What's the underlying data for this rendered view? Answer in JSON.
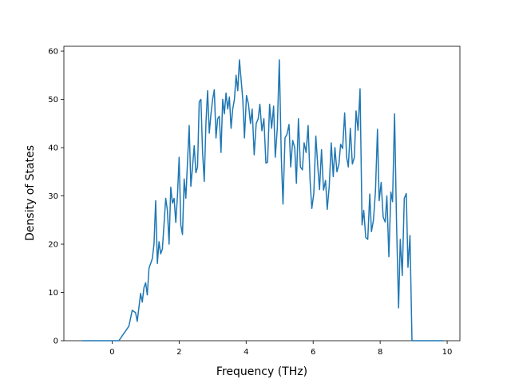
{
  "chart_data": {
    "type": "line",
    "x_label": "Frequency (THz)",
    "y_label": "Density of States",
    "xlim": [
      -1.44,
      10.38
    ],
    "ylim": [
      0,
      61
    ],
    "xticks": [
      0,
      2,
      4,
      6,
      8,
      10
    ],
    "yticks": [
      0,
      10,
      20,
      30,
      40,
      50,
      60
    ],
    "x": [
      -0.9,
      0.2,
      0.3,
      0.4,
      0.5,
      0.6,
      0.7,
      0.75,
      0.85,
      0.9,
      0.95,
      1.0,
      1.05,
      1.1,
      1.2,
      1.25,
      1.3,
      1.35,
      1.4,
      1.45,
      1.5,
      1.6,
      1.65,
      1.7,
      1.75,
      1.8,
      1.85,
      1.9,
      1.95,
      2.0,
      2.05,
      2.1,
      2.15,
      2.2,
      2.25,
      2.3,
      2.35,
      2.4,
      2.45,
      2.5,
      2.55,
      2.6,
      2.65,
      2.7,
      2.75,
      2.8,
      2.85,
      2.9,
      2.95,
      3.0,
      3.05,
      3.1,
      3.15,
      3.2,
      3.25,
      3.3,
      3.35,
      3.4,
      3.45,
      3.5,
      3.55,
      3.6,
      3.65,
      3.7,
      3.75,
      3.8,
      3.9,
      3.95,
      4.01,
      4.07,
      4.13,
      4.18,
      4.24,
      4.3,
      4.36,
      4.41,
      4.47,
      4.53,
      4.59,
      4.64,
      4.7,
      4.76,
      4.82,
      4.87,
      4.93,
      4.99,
      5.05,
      5.1,
      5.16,
      5.22,
      5.28,
      5.33,
      5.39,
      5.45,
      5.5,
      5.56,
      5.62,
      5.68,
      5.73,
      5.79,
      5.85,
      5.91,
      5.96,
      6.02,
      6.08,
      6.14,
      6.19,
      6.25,
      6.31,
      6.37,
      6.42,
      6.48,
      6.54,
      6.6,
      6.65,
      6.71,
      6.77,
      6.82,
      6.88,
      6.94,
      7.0,
      7.05,
      7.11,
      7.17,
      7.23,
      7.28,
      7.34,
      7.4,
      7.46,
      7.51,
      7.57,
      7.63,
      7.69,
      7.74,
      7.8,
      7.86,
      7.92,
      7.97,
      8.03,
      8.09,
      8.15,
      8.2,
      8.26,
      8.32,
      8.37,
      8.43,
      8.49,
      8.55,
      8.6,
      8.66,
      8.72,
      8.78,
      8.83,
      8.89,
      8.95,
      9.9
    ],
    "series": [
      {
        "color": "#1f77b4",
        "values": [
          0,
          0,
          1,
          2,
          3,
          6.3,
          5.8,
          4,
          9.8,
          8,
          11,
          12,
          9.5,
          15,
          17,
          20,
          29,
          16,
          20.5,
          18,
          19,
          29.5,
          27,
          20,
          31.8,
          28.5,
          29.5,
          24.5,
          30,
          38,
          24,
          22,
          33.5,
          29.5,
          37,
          44.6,
          32,
          36,
          40.4,
          34.8,
          36,
          49.5,
          50,
          39,
          33,
          45,
          51.8,
          43,
          47,
          50,
          52,
          42,
          46,
          46.5,
          39,
          50,
          47,
          51.3,
          48,
          50.5,
          44,
          48,
          50,
          55,
          51.8,
          58.2,
          50,
          42,
          50.8,
          49,
          45,
          48,
          38.5,
          45,
          46,
          49,
          43.5,
          46,
          36.8,
          37,
          49,
          44,
          48.6,
          38,
          44,
          58.2,
          38,
          28.3,
          42,
          42.8,
          44.8,
          36,
          41.5,
          40,
          32.6,
          46,
          36,
          35.4,
          41,
          39,
          44.6,
          33,
          27.4,
          30.5,
          42.4,
          36,
          31.3,
          39.6,
          31.2,
          33.2,
          27.2,
          32,
          41,
          34,
          40,
          35,
          36.6,
          40.7,
          39.8,
          47.2,
          38,
          36,
          44,
          36.6,
          38,
          47.6,
          43.6,
          52.2,
          24,
          27,
          21.4,
          21,
          30.4,
          22.6,
          25,
          31,
          43.8,
          29,
          32.8,
          25.6,
          24.6,
          30,
          17.4,
          30.8,
          28.8,
          47,
          24,
          6.8,
          21,
          13.5,
          29.5,
          30.5,
          15.2,
          21.8,
          0,
          0
        ]
      }
    ]
  }
}
